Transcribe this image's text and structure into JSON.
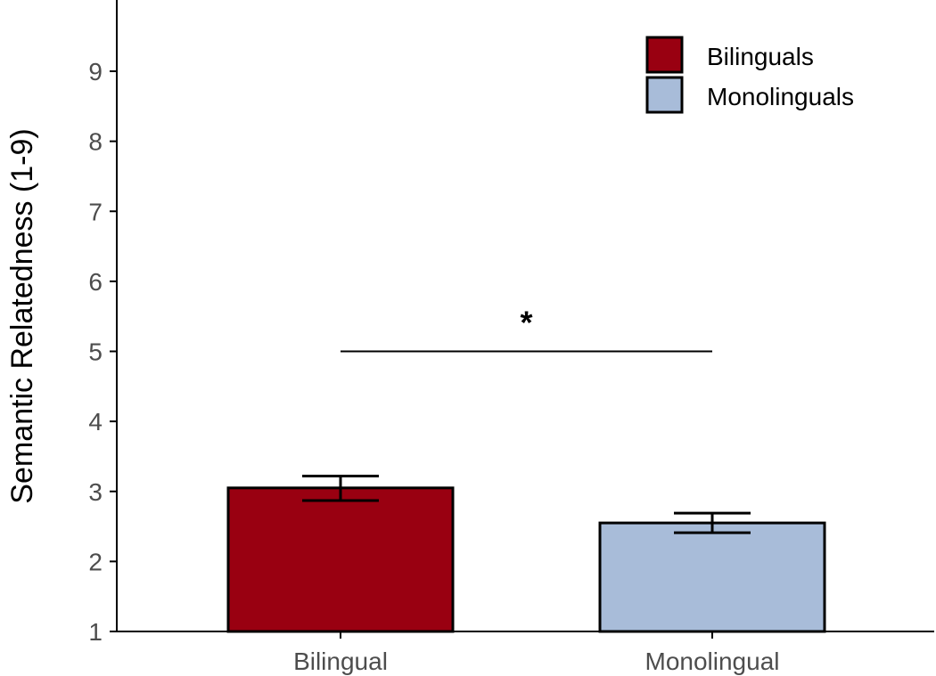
{
  "chart_data": {
    "type": "bar",
    "categories": [
      "Bilingual",
      "Monolingual"
    ],
    "values": [
      3.05,
      2.55
    ],
    "error": [
      {
        "low": 2.87,
        "high": 3.22
      },
      {
        "low": 2.41,
        "high": 2.69
      }
    ],
    "colors": [
      "#990011",
      "#a8bcd9"
    ],
    "ylabel": "Semantic Relatedness (1-9)",
    "xlabel": "",
    "ylim": [
      1,
      9.9
    ],
    "yticks": [
      1,
      2,
      3,
      4,
      5,
      6,
      7,
      8,
      9
    ],
    "legend": {
      "position": "top-right",
      "items": [
        {
          "label": "Bilinguals",
          "color": "#990011"
        },
        {
          "label": "Monolinguals",
          "color": "#a8bcd9"
        }
      ]
    },
    "significance": {
      "from": "Bilingual",
      "to": "Monolingual",
      "y": 5,
      "label": "*"
    },
    "grid": false
  }
}
